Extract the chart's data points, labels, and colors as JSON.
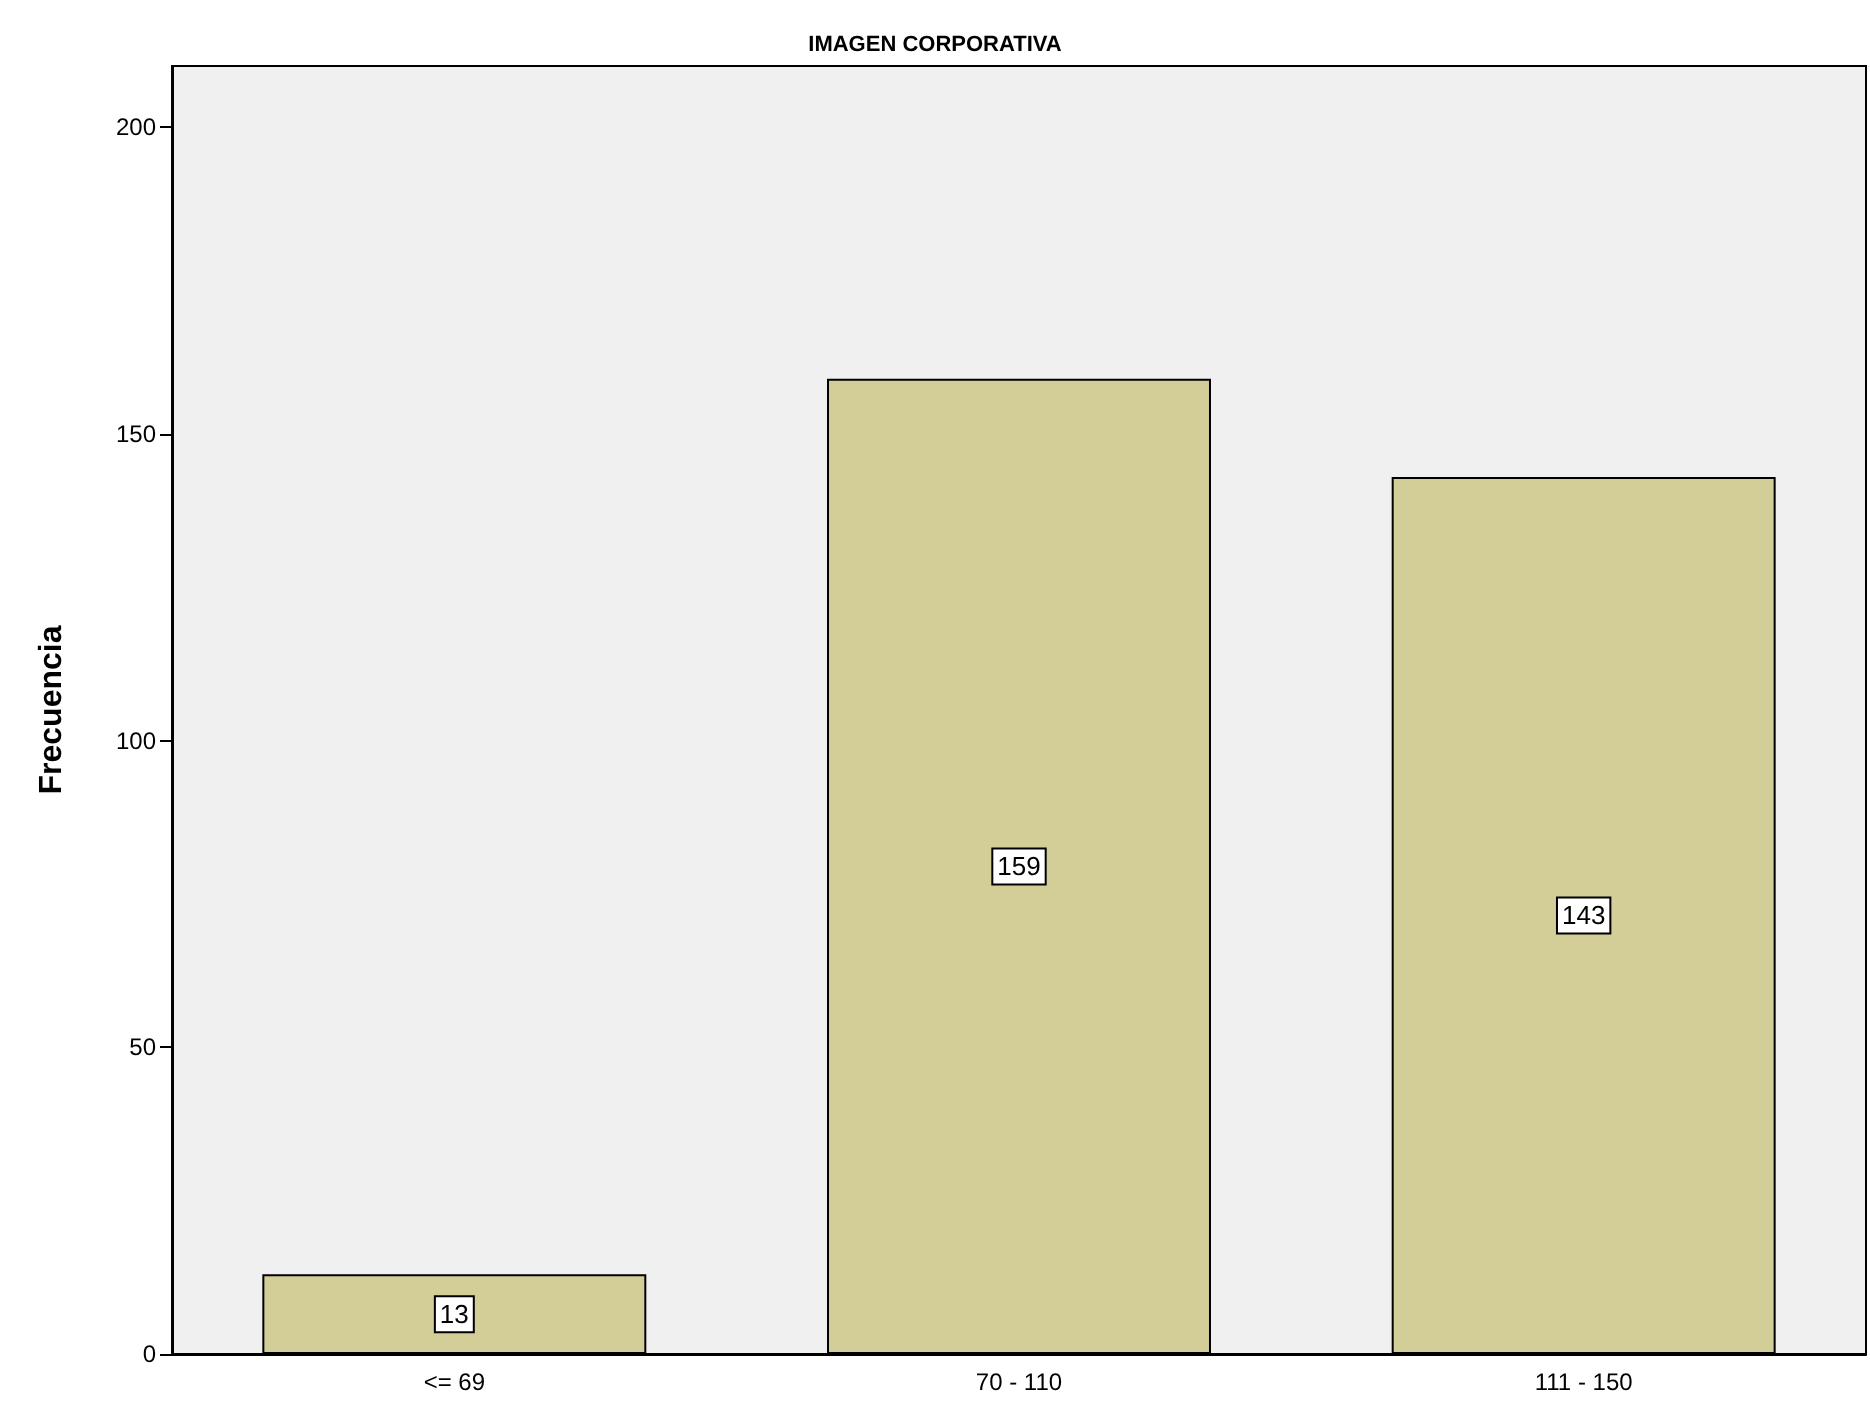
{
  "chart_data": {
    "type": "bar",
    "title": "IMAGEN CORPORATIVA",
    "ylabel": "Frecuencia",
    "categories": [
      "<= 69",
      "70 - 110",
      "111 - 150"
    ],
    "values": [
      13,
      159,
      143
    ],
    "color": "#d3cd98",
    "ylim": [
      0,
      210
    ],
    "yticks": [
      0,
      50,
      100,
      150,
      200
    ],
    "grid": false,
    "data_labels": true
  }
}
